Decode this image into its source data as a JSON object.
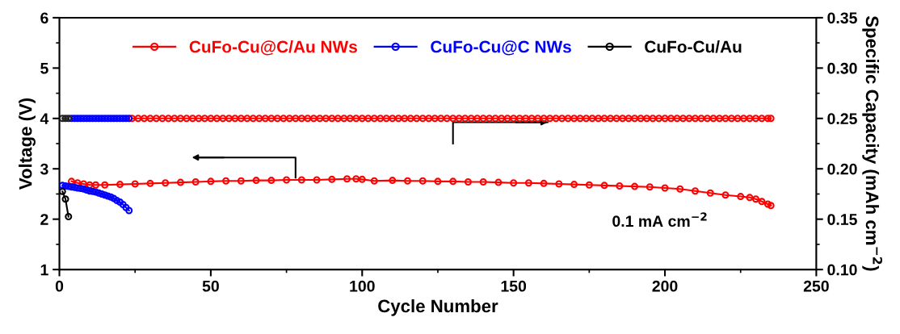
{
  "chart_data": {
    "type": "line",
    "xlabel": "Cycle Number",
    "ylabel": "Voltage (V)",
    "y2label": "Specific Capacity (mAh cm$^{−2}$)",
    "xlim": [
      0,
      250
    ],
    "xticks": [
      0,
      50,
      100,
      150,
      200,
      250
    ],
    "ylim": [
      1,
      6
    ],
    "yticks": [
      1,
      2,
      3,
      4,
      5,
      6
    ],
    "y2lim": [
      0.1,
      0.35
    ],
    "y2ticks": [
      {
        "value": 0.1,
        "label": "0.10"
      },
      {
        "value": 0.15,
        "label": "0.15"
      },
      {
        "value": 0.2,
        "label": "0.20"
      },
      {
        "value": 0.25,
        "label": "0.25"
      },
      {
        "value": 0.3,
        "label": "0.30"
      },
      {
        "value": 0.35,
        "label": "0.35"
      }
    ],
    "legend": "top",
    "marker": "circle",
    "line_style": "solid",
    "grid": false,
    "annotations": [
      "0.1 mA cm$^{−2}$"
    ],
    "series": [
      {
        "name": "CuFo-Cu@C/Au NWs",
        "color": "#ff0000",
        "x": [
          4,
          6,
          8,
          10,
          12,
          15,
          20,
          25,
          30,
          35,
          40,
          45,
          50,
          55,
          60,
          65,
          70,
          75,
          80,
          85,
          90,
          95,
          98,
          100,
          104,
          110,
          115,
          120,
          125,
          130,
          135,
          140,
          145,
          150,
          155,
          160,
          165,
          170,
          175,
          180,
          185,
          190,
          195,
          200,
          205,
          210,
          215,
          220,
          225,
          228,
          230,
          232,
          234,
          235
        ],
        "values": [
          2.75,
          2.72,
          2.7,
          2.68,
          2.68,
          2.68,
          2.69,
          2.7,
          2.71,
          2.72,
          2.73,
          2.74,
          2.75,
          2.76,
          2.76,
          2.77,
          2.77,
          2.78,
          2.78,
          2.78,
          2.79,
          2.8,
          2.8,
          2.79,
          2.76,
          2.77,
          2.76,
          2.76,
          2.75,
          2.75,
          2.74,
          2.74,
          2.73,
          2.72,
          2.72,
          2.71,
          2.7,
          2.69,
          2.68,
          2.67,
          2.66,
          2.65,
          2.64,
          2.62,
          2.6,
          2.56,
          2.52,
          2.48,
          2.45,
          2.43,
          2.4,
          2.35,
          2.3,
          2.27
        ]
      },
      {
        "name": "CuFo-Cu@C NWs",
        "color": "#0000ff",
        "x": [
          1,
          2,
          3,
          4,
          5,
          6,
          7,
          8,
          9,
          10,
          11,
          12,
          13,
          14,
          15,
          16,
          17,
          18,
          19,
          20,
          21,
          22,
          23
        ],
        "values": [
          2.67,
          2.66,
          2.65,
          2.64,
          2.63,
          2.62,
          2.61,
          2.6,
          2.58,
          2.56,
          2.55,
          2.54,
          2.52,
          2.5,
          2.48,
          2.46,
          2.44,
          2.41,
          2.37,
          2.34,
          2.29,
          2.23,
          2.17
        ]
      },
      {
        "name": "CuFo-Cu/Au",
        "color": "#000000",
        "x": [
          1,
          2,
          3
        ],
        "values": [
          2.55,
          2.4,
          2.05
        ]
      },
      {
        "color": "#ff0000",
        "axis": "y2",
        "x": [
          24,
          26,
          28,
          30,
          32,
          34,
          36,
          38,
          40,
          42,
          44,
          46,
          48,
          50,
          52,
          54,
          56,
          58,
          60,
          62,
          64,
          66,
          68,
          70,
          72,
          74,
          76,
          78,
          80,
          82,
          84,
          86,
          88,
          90,
          92,
          94,
          96,
          98,
          100,
          102,
          104,
          106,
          108,
          110,
          112,
          114,
          116,
          118,
          120,
          122,
          124,
          126,
          128,
          130,
          132,
          134,
          136,
          138,
          140,
          142,
          144,
          146,
          148,
          150,
          152,
          154,
          156,
          158,
          160,
          162,
          164,
          166,
          168,
          170,
          172,
          174,
          176,
          178,
          180,
          182,
          184,
          186,
          188,
          190,
          192,
          194,
          196,
          198,
          200,
          202,
          204,
          206,
          208,
          210,
          212,
          214,
          216,
          218,
          220,
          222,
          224,
          226,
          228,
          230,
          232,
          234,
          235
        ],
        "values": [
          0.25,
          0.25,
          0.25,
          0.25,
          0.25,
          0.25,
          0.25,
          0.25,
          0.25,
          0.25,
          0.25,
          0.25,
          0.25,
          0.25,
          0.25,
          0.25,
          0.25,
          0.25,
          0.25,
          0.25,
          0.25,
          0.25,
          0.25,
          0.25,
          0.25,
          0.25,
          0.25,
          0.25,
          0.25,
          0.25,
          0.25,
          0.25,
          0.25,
          0.25,
          0.25,
          0.25,
          0.25,
          0.25,
          0.25,
          0.25,
          0.25,
          0.25,
          0.25,
          0.25,
          0.25,
          0.25,
          0.25,
          0.25,
          0.25,
          0.25,
          0.25,
          0.25,
          0.25,
          0.25,
          0.25,
          0.25,
          0.25,
          0.25,
          0.25,
          0.25,
          0.25,
          0.25,
          0.25,
          0.25,
          0.25,
          0.25,
          0.25,
          0.25,
          0.25,
          0.25,
          0.25,
          0.25,
          0.25,
          0.25,
          0.25,
          0.25,
          0.25,
          0.25,
          0.25,
          0.25,
          0.25,
          0.25,
          0.25,
          0.25,
          0.25,
          0.25,
          0.25,
          0.25,
          0.25,
          0.25,
          0.25,
          0.25,
          0.25,
          0.25,
          0.25,
          0.25,
          0.25,
          0.25,
          0.25,
          0.25,
          0.25,
          0.25,
          0.25,
          0.25,
          0.25,
          0.25,
          0.25
        ]
      },
      {
        "color": "#0000ff",
        "axis": "y2",
        "x": [
          4,
          5,
          6,
          7,
          8,
          9,
          10,
          11,
          12,
          13,
          14,
          15,
          16,
          17,
          18,
          19,
          20,
          21,
          22,
          23
        ],
        "values": [
          0.25,
          0.25,
          0.25,
          0.25,
          0.25,
          0.25,
          0.25,
          0.25,
          0.25,
          0.25,
          0.25,
          0.25,
          0.25,
          0.25,
          0.25,
          0.25,
          0.25,
          0.25,
          0.25,
          0.25
        ]
      },
      {
        "color": "#222222",
        "axis": "y2",
        "x": [
          1,
          2,
          3
        ],
        "values": [
          0.25,
          0.25,
          0.25
        ]
      }
    ]
  }
}
